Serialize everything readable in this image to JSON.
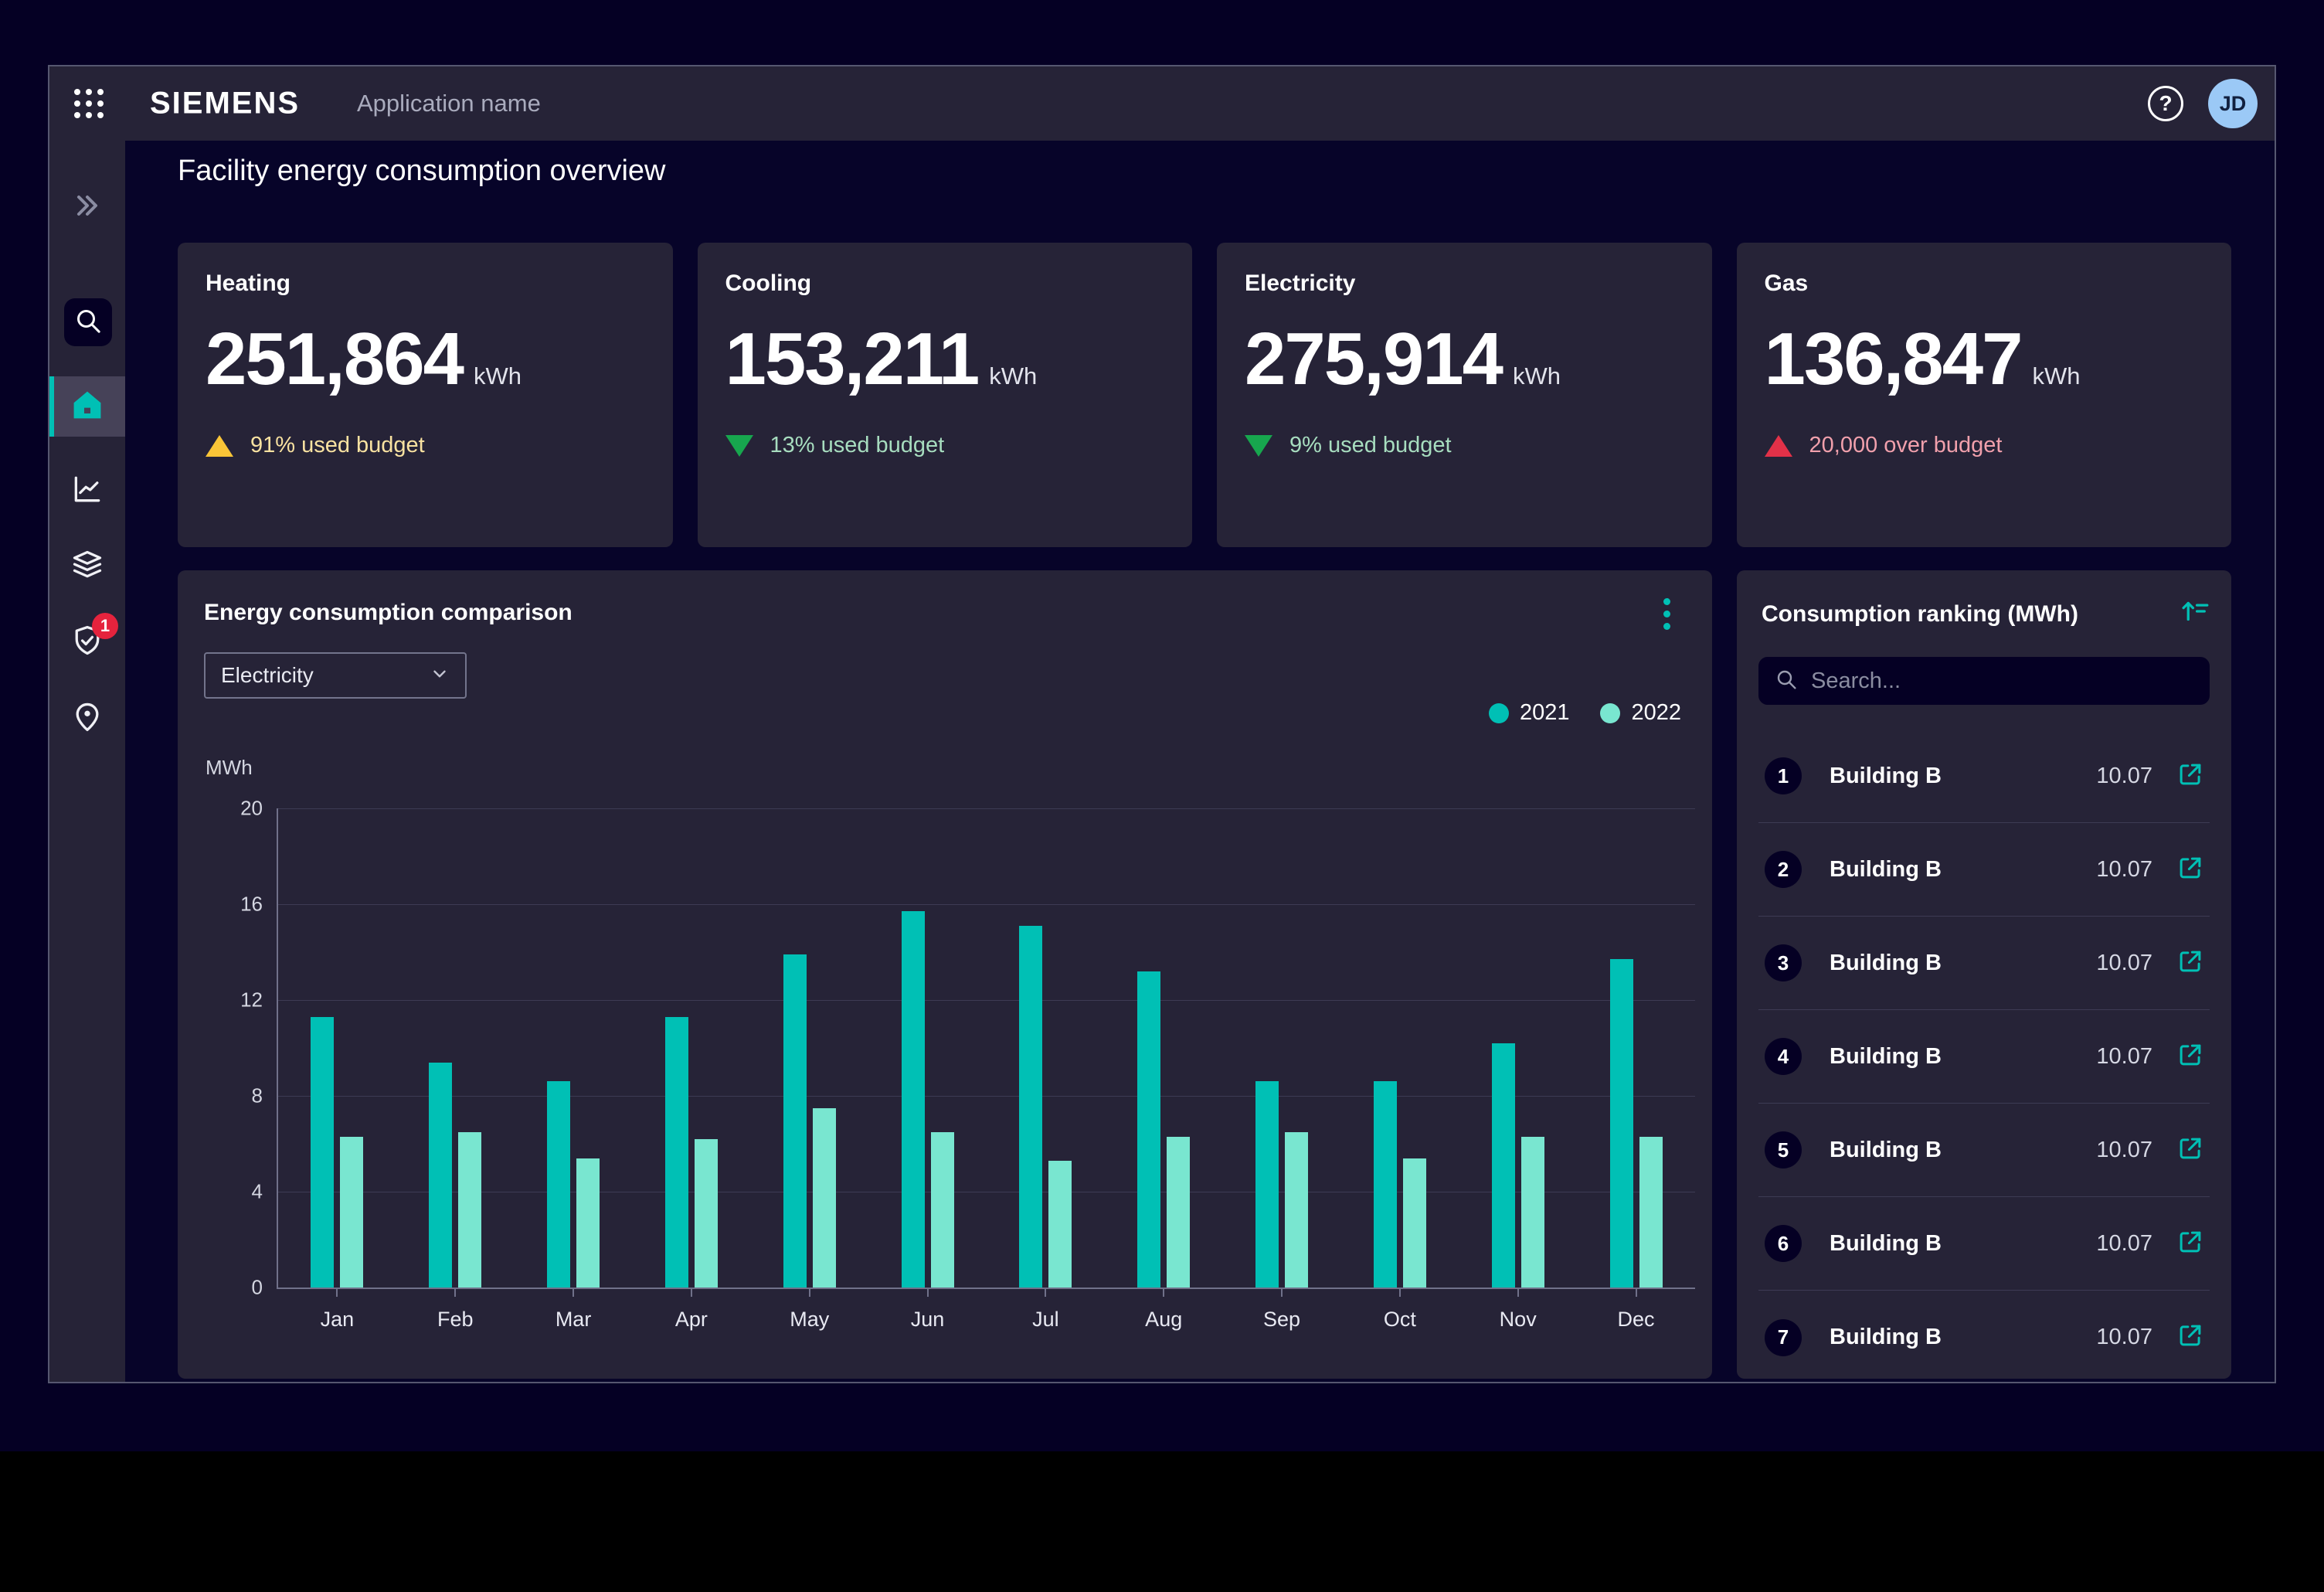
{
  "header": {
    "brand": "SIEMENS",
    "app_name": "Application name",
    "help_label": "?",
    "avatar_initials": "JD"
  },
  "sidebar": {
    "notification_badge": "1"
  },
  "page": {
    "title": "Facility energy consumption overview"
  },
  "kpi_cards": [
    {
      "title": "Heating",
      "value": "251,864",
      "unit": "kWh",
      "direction": "up",
      "triangle_color": "#fac537",
      "status_color": "#f9e2a1",
      "status_text": "91% used budget"
    },
    {
      "title": "Cooling",
      "value": "153,211",
      "unit": "kWh",
      "direction": "down",
      "triangle_color": "#17a64e",
      "status_color": "#a7ddbf",
      "status_text": "13% used budget"
    },
    {
      "title": "Electricity",
      "value": "275,914",
      "unit": "kWh",
      "direction": "down",
      "triangle_color": "#17a64e",
      "status_color": "#a7ddbf",
      "status_text": "9% used budget"
    },
    {
      "title": "Gas",
      "value": "136,847",
      "unit": "kWh",
      "direction": "up",
      "triangle_color": "#e23148",
      "status_color": "#f1a0ac",
      "status_text": "20,000 over budget"
    }
  ],
  "chart_card": {
    "title": "Energy consumption comparison",
    "filter_value": "Electricity",
    "unit_label": "MWh"
  },
  "chart_data": {
    "type": "bar",
    "title": "Energy consumption comparison",
    "xlabel": "",
    "ylabel": "MWh",
    "ylim": [
      0,
      20
    ],
    "y_ticks": [
      20,
      16,
      12,
      8,
      4,
      0
    ],
    "grid": "horizontal",
    "legend_position": "top-right",
    "categories": [
      "Jan",
      "Feb",
      "Mar",
      "Apr",
      "May",
      "Jun",
      "Jul",
      "Aug",
      "Sep",
      "Oct",
      "Nov",
      "Dec"
    ],
    "series": [
      {
        "name": "2021",
        "color": "#00c0b5",
        "values": [
          11.3,
          9.4,
          8.6,
          11.3,
          13.9,
          15.7,
          15.1,
          13.2,
          8.6,
          8.6,
          10.2,
          13.7
        ]
      },
      {
        "name": "2022",
        "color": "#79e6d0",
        "values": [
          6.3,
          6.5,
          5.4,
          6.2,
          7.5,
          6.5,
          5.3,
          6.3,
          6.5,
          5.4,
          6.3,
          6.3
        ]
      }
    ]
  },
  "ranking": {
    "title": "Consumption ranking (MWh)",
    "search_placeholder": "Search...",
    "rows": [
      {
        "rank": "1",
        "name": "Building B",
        "value": "10.07"
      },
      {
        "rank": "2",
        "name": "Building B",
        "value": "10.07"
      },
      {
        "rank": "3",
        "name": "Building B",
        "value": "10.07"
      },
      {
        "rank": "4",
        "name": "Building B",
        "value": "10.07"
      },
      {
        "rank": "5",
        "name": "Building B",
        "value": "10.07"
      },
      {
        "rank": "6",
        "name": "Building B",
        "value": "10.07"
      },
      {
        "rank": "7",
        "name": "Building B",
        "value": "10.07"
      }
    ]
  }
}
